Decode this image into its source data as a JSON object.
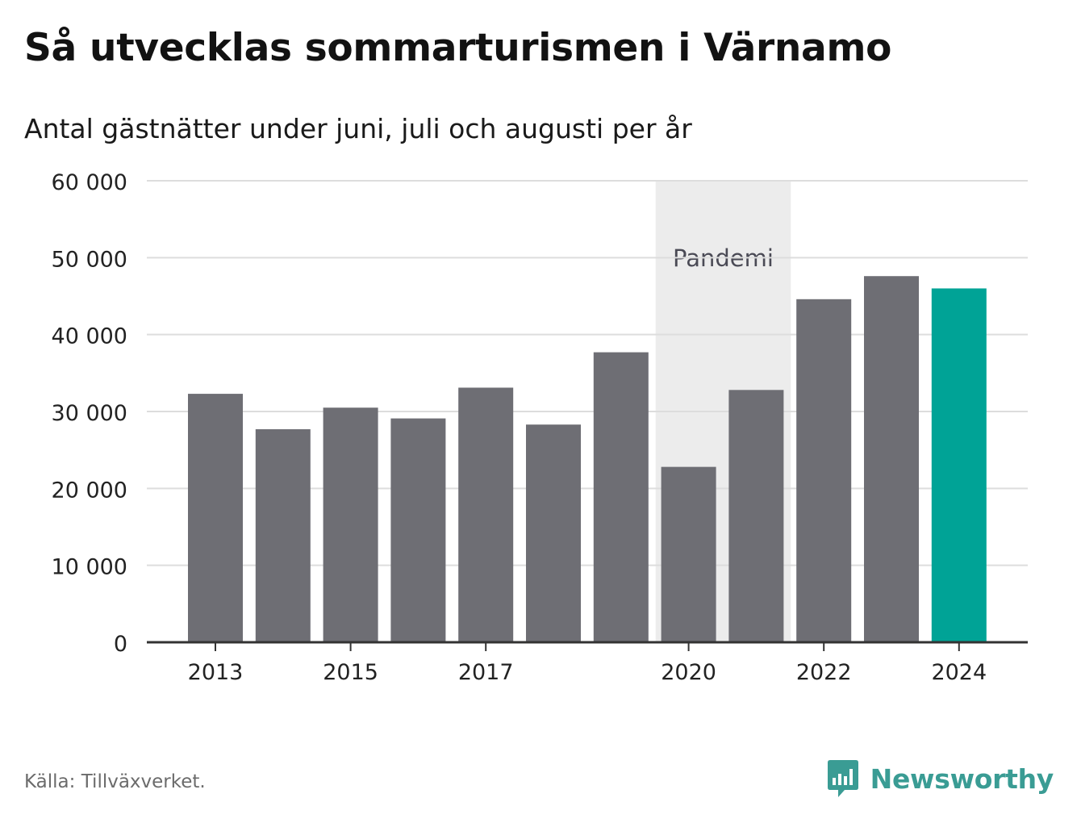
{
  "title": "Så utvecklas sommarturismen i Värnamo",
  "subtitle": "Antal gästnätter under juni, juli och augusti per år",
  "source": "Källa: Tillväxverket.",
  "brand": {
    "name": "Newsworthy",
    "logo_icon": "newsworthy-bar-chart-icon"
  },
  "colors": {
    "bar": "#6e6e74",
    "highlight": "#00a396",
    "annotation_band": "#ececec",
    "grid": "#dddddd",
    "axis": "#333333",
    "brand": "#3a9c94"
  },
  "chart_data": {
    "type": "bar",
    "categories": [
      "2013",
      "2014",
      "2015",
      "2016",
      "2017",
      "2018",
      "2019",
      "2020",
      "2021",
      "2022",
      "2023",
      "2024"
    ],
    "values": [
      32300,
      27700,
      30500,
      29100,
      33100,
      28300,
      37700,
      22800,
      32800,
      44600,
      47600,
      46000
    ],
    "highlight_category": "2024",
    "x_tick_labels": [
      "2013",
      "2015",
      "2017",
      "2020",
      "2022",
      "2024"
    ],
    "y_ticks": [
      0,
      10000,
      20000,
      30000,
      40000,
      50000,
      60000
    ],
    "y_tick_labels": [
      "0",
      "10 000",
      "20 000",
      "30 000",
      "40 000",
      "50 000",
      "60 000"
    ],
    "ylim": [
      0,
      60000
    ],
    "grid": true,
    "xlabel": "",
    "ylabel": "",
    "annotation": {
      "label": "Pandemi",
      "from": "2020",
      "to": "2021"
    }
  }
}
